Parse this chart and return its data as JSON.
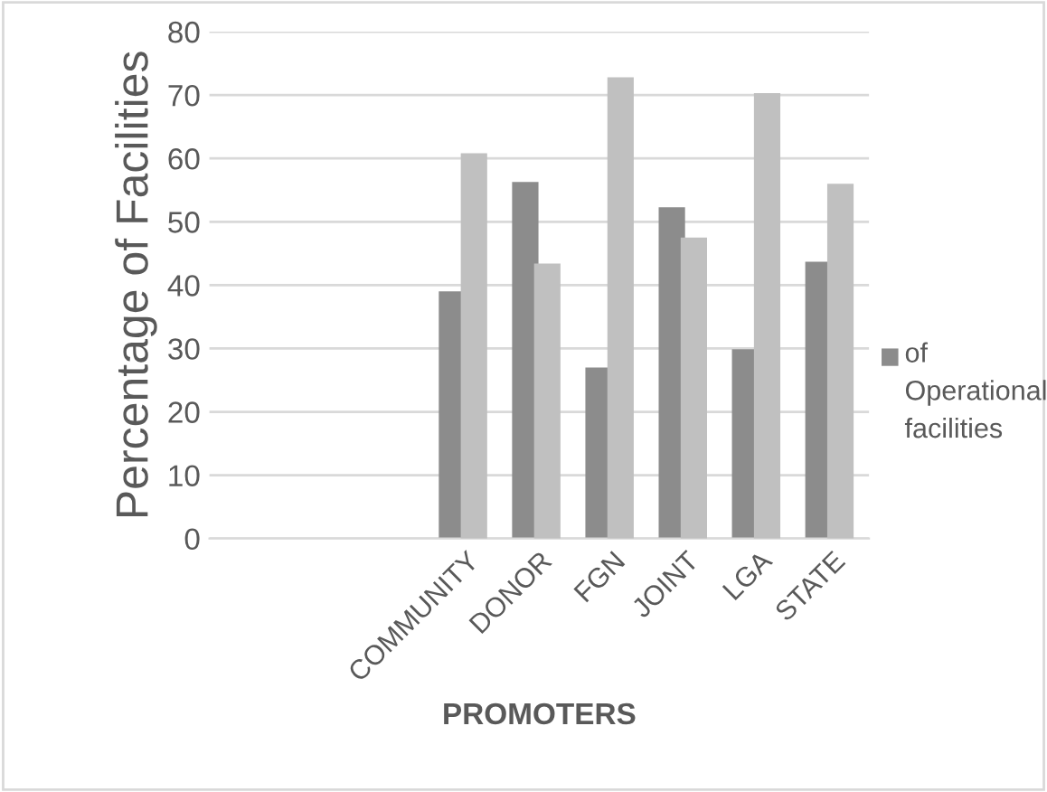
{
  "chart_data": {
    "type": "bar",
    "xlabel": "PROMOTERS",
    "ylabel": "Percentage of Facilities",
    "categories": [
      null,
      null,
      null,
      "COMMUNITY",
      "DONOR",
      "FGN",
      "JOINT",
      "LGA",
      "STATE"
    ],
    "series": [
      {
        "name": "of Operational facilities",
        "color": "#8c8c8c",
        "values": [
          null,
          null,
          null,
          39,
          56.3,
          27,
          52.3,
          29.9,
          43.7
        ]
      },
      {
        "color": "#c0c0c0",
        "values": [
          null,
          null,
          null,
          60.8,
          43.4,
          72.8,
          47.5,
          70.3,
          56
        ]
      }
    ],
    "ylim": [
      0,
      80
    ],
    "yticks": [
      0,
      10,
      20,
      30,
      40,
      50,
      60,
      70,
      80
    ],
    "grid": "y",
    "legend": "right"
  }
}
